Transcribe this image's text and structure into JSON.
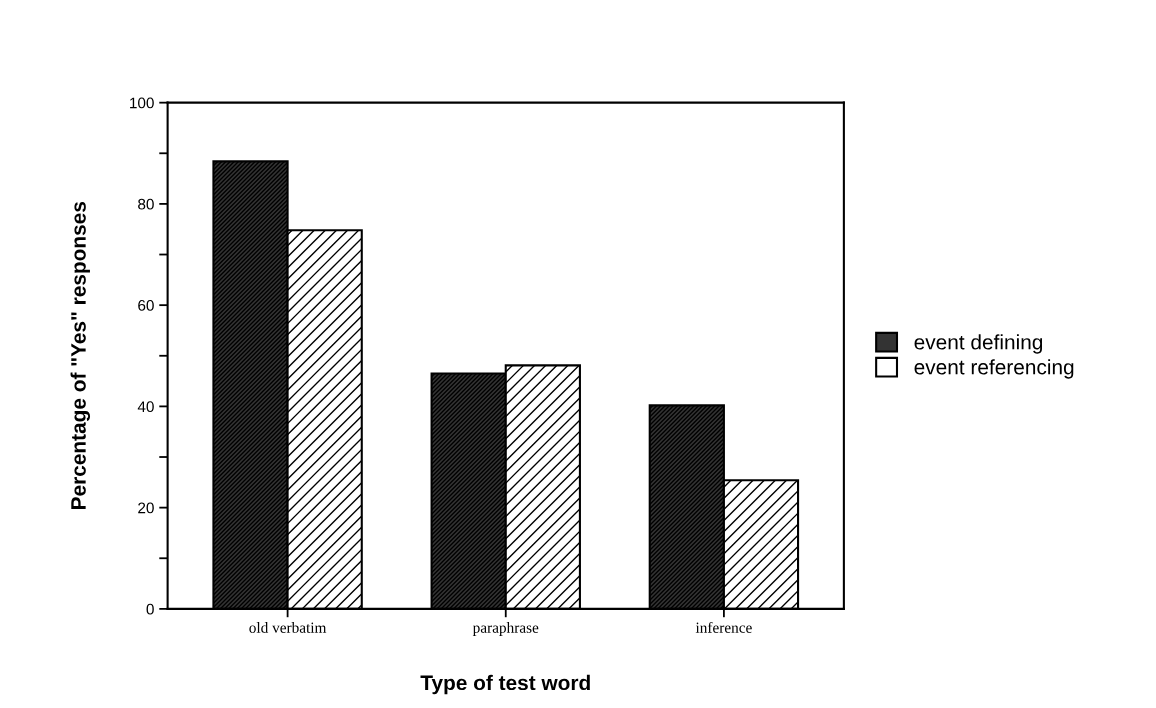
{
  "chart_data": {
    "type": "bar",
    "xlabel": "Type of test word",
    "ylabel": "Percentage of \"Yes\" responses",
    "categories": [
      "old verbatim",
      "paraphrase",
      "inference"
    ],
    "series": [
      {
        "name": "event defining",
        "color": "#333333",
        "values": [
          88.4,
          46.5,
          40.2
        ]
      },
      {
        "name": "event referencing",
        "color": "#ffffff",
        "values": [
          74.8,
          48.1,
          25.4
        ]
      }
    ],
    "ylim": [
      0,
      100
    ],
    "yticks": [
      0,
      {
        "value": 10,
        "label": null
      },
      20,
      {
        "value": 30,
        "label": null
      },
      40,
      {
        "value": 50,
        "label": null
      },
      60,
      {
        "value": 70,
        "label": null
      },
      80,
      {
        "value": 90,
        "label": null
      },
      100
    ],
    "grid": false,
    "legend": "right"
  }
}
